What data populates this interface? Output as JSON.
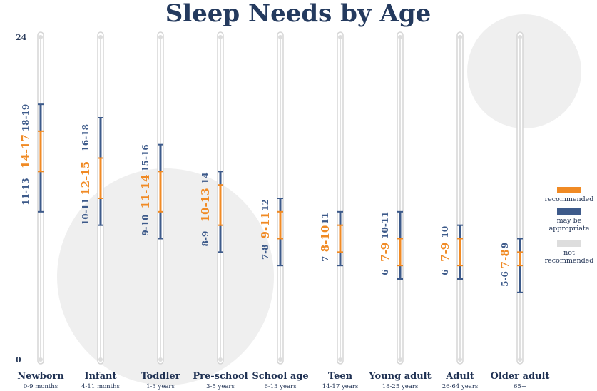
{
  "chart_data": {
    "type": "bar",
    "title": "Sleep Needs by Age",
    "ylim": [
      0,
      24
    ],
    "y_tick_labels": [
      "0",
      "24"
    ],
    "categories": [
      {
        "name": "Newborn",
        "sub": "0-9 months"
      },
      {
        "name": "Infant",
        "sub": "4-11 months"
      },
      {
        "name": "Toddler",
        "sub": "1-3 years"
      },
      {
        "name": "Pre-school",
        "sub": "3-5 years"
      },
      {
        "name": "School age",
        "sub": "6-13 years"
      },
      {
        "name": "Teen",
        "sub": "14-17 years"
      },
      {
        "name": "Young adult",
        "sub": "18-25 years"
      },
      {
        "name": "Adult",
        "sub": "26-64 years"
      },
      {
        "name": "Older adult",
        "sub": "65+"
      }
    ],
    "series": [
      {
        "name": "recommended",
        "color": "#f08a24",
        "ranges": [
          [
            14,
            17
          ],
          [
            12,
            15
          ],
          [
            11,
            14
          ],
          [
            10,
            13
          ],
          [
            9,
            11
          ],
          [
            8,
            10
          ],
          [
            7,
            9
          ],
          [
            7,
            9
          ],
          [
            7,
            8
          ]
        ],
        "labels": [
          "14-17",
          "12-15",
          "11-14",
          "10-13",
          "9-11",
          "8-10",
          "7-9",
          "7-9",
          "7-8"
        ]
      },
      {
        "name": "may be appropriate",
        "color": "#3d5a8a",
        "ranges": [
          [
            11,
            19
          ],
          [
            10,
            18
          ],
          [
            9,
            16
          ],
          [
            8,
            14
          ],
          [
            7,
            12
          ],
          [
            7,
            11
          ],
          [
            6,
            11
          ],
          [
            6,
            10
          ],
          [
            5,
            9
          ]
        ],
        "low_labels": [
          "11-13",
          "10-11",
          "9-10",
          "8-9",
          "7-8",
          "7",
          "6",
          "6",
          "5-6"
        ],
        "high_labels": [
          "18-19",
          "16-18",
          "15-16",
          "14",
          "12",
          "11",
          "10-11",
          "10",
          "9"
        ]
      }
    ],
    "legend": {
      "position": "right",
      "items": [
        {
          "label": "recommended",
          "color": "#f08a24"
        },
        {
          "label": "may be appropriate",
          "color": "#3d5a8a"
        },
        {
          "label": "not recommended",
          "color": "#dddddd"
        }
      ]
    }
  }
}
